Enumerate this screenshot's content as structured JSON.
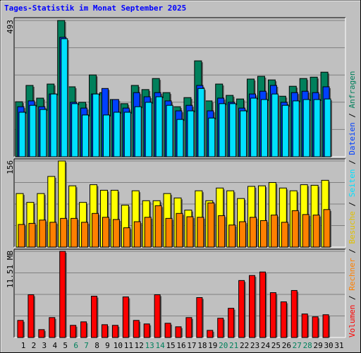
{
  "chart_data": {
    "type": "bar",
    "title": "Tages-Statistik im Monat September 2025",
    "title_color": "#0000ff",
    "categories": [
      "1",
      "2",
      "3",
      "4",
      "5",
      "6",
      "7",
      "8",
      "9",
      "10",
      "11",
      "12",
      "13",
      "14",
      "15",
      "16",
      "17",
      "18",
      "19",
      "20",
      "21",
      "22",
      "23",
      "24",
      "25",
      "26",
      "27",
      "28",
      "29",
      "30",
      "31"
    ],
    "label_colors": [
      "#000000",
      "#000000",
      "#000000",
      "#000000",
      "#000000",
      "#00805c",
      "#00805c",
      "#000000",
      "#000000",
      "#000000",
      "#000000",
      "#000000",
      "#00805c",
      "#00805c",
      "#000000",
      "#000000",
      "#000000",
      "#000000",
      "#000000",
      "#00805c",
      "#00805c",
      "#000000",
      "#000000",
      "#000000",
      "#000000",
      "#000000",
      "#00805c",
      "#00805c",
      "#000000",
      "#000000",
      "#000000"
    ],
    "legend_separator": "/",
    "panels": [
      {
        "ylim": [
          0,
          493
        ],
        "yticks": [
          493
        ],
        "grid_divisions": 5,
        "series": [
          {
            "name": "Anfragen",
            "color": "#00805c",
            "values": [
              199,
              258,
              212,
              263,
              493,
              253,
              197,
              296,
              232,
              207,
              192,
              258,
              243,
              283,
              232,
              181,
              214,
              347,
              202,
              263,
              222,
              209,
              281,
              291,
              278,
              219,
              255,
              283,
              288,
              306,
              null
            ]
          },
          {
            "name": "Dateien",
            "color": "#0040ff",
            "values": [
              181,
              202,
              181,
              227,
              432,
              197,
              176,
              227,
              247,
              207,
              176,
              232,
              217,
              232,
              202,
              166,
              186,
              258,
              166,
              212,
              197,
              176,
              227,
              237,
              258,
              197,
              232,
              237,
              232,
              253,
              null
            ]
          },
          {
            "name": "Seiten",
            "color": "#00e0ff",
            "values": [
              161,
              186,
              171,
              227,
              427,
              192,
              151,
              227,
              151,
              161,
              161,
              181,
              197,
              217,
              186,
              135,
              166,
              247,
              140,
              192,
              192,
              166,
              212,
              207,
              227,
              186,
              202,
              207,
              207,
              209,
              null
            ]
          }
        ]
      },
      {
        "ylim": [
          0,
          156
        ],
        "yticks": [
          156
        ],
        "grid_divisions": 4,
        "series": [
          {
            "name": "Besuche",
            "color": "#ffff00",
            "values": [
              97,
              81,
              97,
              128,
              156,
              111,
              81,
              113,
              103,
              103,
              76,
              102,
              84,
              84,
              97,
              89,
              67,
              102,
              84,
              107,
              102,
              88,
              110,
              111,
              117,
              107,
              102,
              113,
              112,
              121,
              null
            ]
          },
          {
            "name": "Rechner",
            "color": "#ff8000",
            "values": [
              41,
              43,
              49,
              45,
              52,
              52,
              45,
              61,
              54,
              50,
              35,
              46,
              54,
              75,
              52,
              61,
              55,
              54,
              80,
              57,
              40,
              46,
              54,
              48,
              58,
              45,
              66,
              59,
              58,
              68,
              null
            ]
          }
        ]
      },
      {
        "ylim": [
          0,
          11.51
        ],
        "yticks": [
          {
            "value": 11.51,
            "label": "11.51 MB"
          }
        ],
        "grid_divisions": 4,
        "series": [
          {
            "name": "Volumen",
            "color": "#ff0000",
            "values": [
              2.28,
              5.71,
              1.05,
              2.66,
              11.51,
              1.62,
              2.09,
              5.52,
              1.71,
              1.62,
              5.42,
              2.28,
              1.81,
              5.71,
              1.9,
              1.43,
              2.66,
              5.33,
              0.95,
              2.57,
              3.9,
              7.61,
              8.28,
              8.75,
              5.99,
              4.76,
              6.28,
              3.14,
              2.76,
              3.04,
              null
            ]
          }
        ]
      }
    ]
  }
}
